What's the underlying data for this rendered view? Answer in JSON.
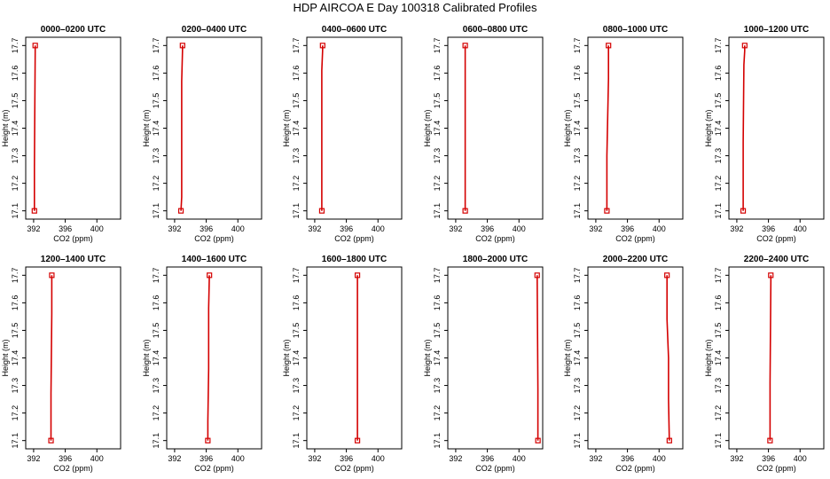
{
  "title": "HDP AIRCOA E  Day 100318  Calibrated Profiles",
  "colors": {
    "profile": "#d40000",
    "axis": "#000000"
  },
  "chart_data": {
    "type": "line",
    "layout": "small-multiples",
    "xlabel": "CO2 (ppm)",
    "ylabel": "Height (m)",
    "xlim": [
      391,
      403
    ],
    "ylim": [
      17.07,
      17.73
    ],
    "xticks": [
      392,
      396,
      400
    ],
    "yticks": [
      17.1,
      17.2,
      17.3,
      17.4,
      17.5,
      17.6,
      17.7
    ],
    "markers": "open-square at measured heights",
    "panels": [
      {
        "title": "0000–0200 UTC",
        "points": [
          {
            "x": 392.1,
            "y": 17.1
          },
          {
            "x": 392.1,
            "y": 17.26
          },
          {
            "x": 392.2,
            "y": 17.68
          },
          {
            "x": 392.2,
            "y": 17.7
          }
        ]
      },
      {
        "title": "0200–0400 UTC",
        "points": [
          {
            "x": 392.8,
            "y": 17.1
          },
          {
            "x": 392.9,
            "y": 17.15
          },
          {
            "x": 392.9,
            "y": 17.57
          },
          {
            "x": 393.0,
            "y": 17.68
          },
          {
            "x": 393.0,
            "y": 17.7
          }
        ]
      },
      {
        "title": "0400–0600 UTC",
        "points": [
          {
            "x": 392.9,
            "y": 17.1
          },
          {
            "x": 392.9,
            "y": 17.61
          },
          {
            "x": 393.0,
            "y": 17.68
          },
          {
            "x": 393.0,
            "y": 17.7
          }
        ]
      },
      {
        "title": "0600–0800 UTC",
        "points": [
          {
            "x": 393.2,
            "y": 17.1
          },
          {
            "x": 393.2,
            "y": 17.7
          }
        ]
      },
      {
        "title": "0800–1000 UTC",
        "points": [
          {
            "x": 393.4,
            "y": 17.1
          },
          {
            "x": 393.4,
            "y": 17.3
          },
          {
            "x": 393.6,
            "y": 17.58
          },
          {
            "x": 393.6,
            "y": 17.68
          },
          {
            "x": 393.6,
            "y": 17.7
          }
        ]
      },
      {
        "title": "1000–1200 UTC",
        "points": [
          {
            "x": 392.8,
            "y": 17.1
          },
          {
            "x": 392.8,
            "y": 17.35
          },
          {
            "x": 392.9,
            "y": 17.63
          },
          {
            "x": 393.0,
            "y": 17.68
          },
          {
            "x": 393.0,
            "y": 17.7
          }
        ]
      },
      {
        "title": "1200–1400 UTC",
        "points": [
          {
            "x": 394.2,
            "y": 17.1
          },
          {
            "x": 394.2,
            "y": 17.27
          },
          {
            "x": 394.3,
            "y": 17.56
          },
          {
            "x": 394.3,
            "y": 17.68
          },
          {
            "x": 394.3,
            "y": 17.7
          }
        ]
      },
      {
        "title": "1400–1600 UTC",
        "points": [
          {
            "x": 396.2,
            "y": 17.1
          },
          {
            "x": 396.2,
            "y": 17.17
          },
          {
            "x": 396.3,
            "y": 17.36
          },
          {
            "x": 396.3,
            "y": 17.58
          },
          {
            "x": 396.4,
            "y": 17.7
          }
        ]
      },
      {
        "title": "1600–1800 UTC",
        "points": [
          {
            "x": 397.4,
            "y": 17.1
          },
          {
            "x": 397.4,
            "y": 17.7
          }
        ]
      },
      {
        "title": "1800–2000 UTC",
        "points": [
          {
            "x": 402.4,
            "y": 17.1
          },
          {
            "x": 402.4,
            "y": 17.29
          },
          {
            "x": 402.3,
            "y": 17.68
          },
          {
            "x": 402.3,
            "y": 17.7
          }
        ]
      },
      {
        "title": "2000–2200 UTC",
        "points": [
          {
            "x": 401.3,
            "y": 17.1
          },
          {
            "x": 401.2,
            "y": 17.25
          },
          {
            "x": 401.2,
            "y": 17.4
          },
          {
            "x": 401.0,
            "y": 17.54
          },
          {
            "x": 401.0,
            "y": 17.7
          }
        ]
      },
      {
        "title": "2200–2400 UTC",
        "points": [
          {
            "x": 396.2,
            "y": 17.1
          },
          {
            "x": 396.2,
            "y": 17.31
          },
          {
            "x": 396.3,
            "y": 17.68
          },
          {
            "x": 396.3,
            "y": 17.7
          }
        ]
      }
    ]
  }
}
